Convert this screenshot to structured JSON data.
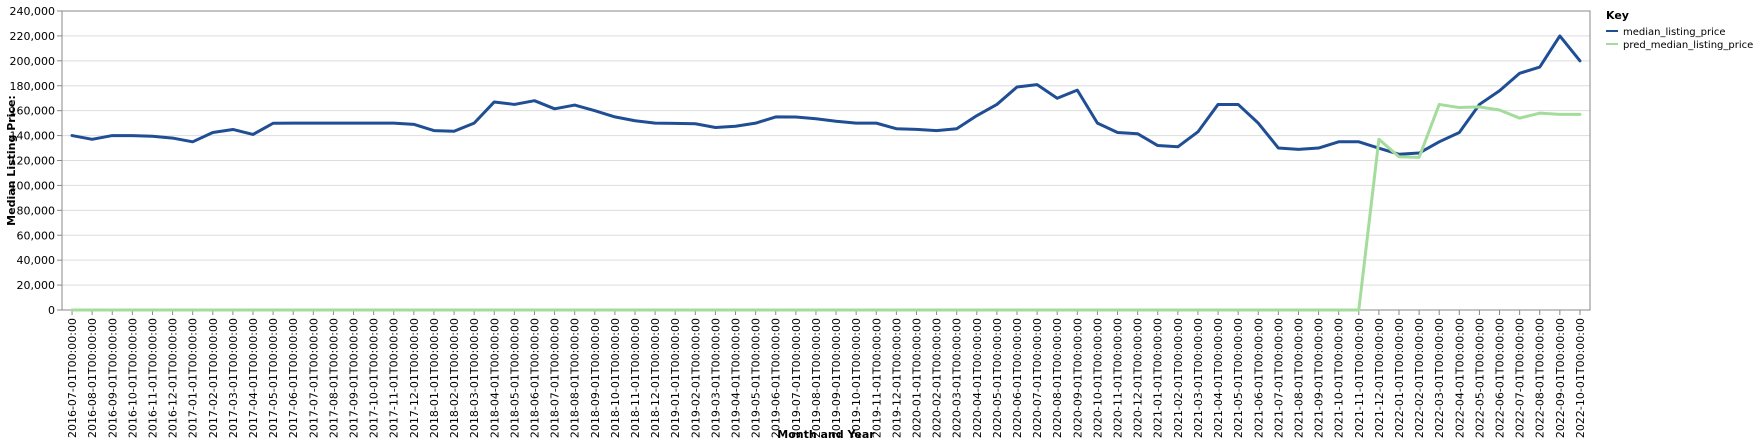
{
  "chart_data": {
    "type": "line",
    "xlabel": "Month and Year",
    "ylabel": "Median Listing Price:",
    "ylim": [
      0,
      240000
    ],
    "y_ticks": [
      "0",
      "20,000",
      "40,000",
      "60,000",
      "80,000",
      "100,000",
      "120,000",
      "140,000",
      "160,000",
      "180,000",
      "200,000",
      "220,000",
      "240,000"
    ],
    "grid": true,
    "legend": {
      "title": "Key",
      "position": "top-right"
    },
    "x": [
      "2016-07-01T00:00:00",
      "2016-08-01T00:00:00",
      "2016-09-01T00:00:00",
      "2016-10-01T00:00:00",
      "2016-11-01T00:00:00",
      "2016-12-01T00:00:00",
      "2017-01-01T00:00:00",
      "2017-02-01T00:00:00",
      "2017-03-01T00:00:00",
      "2017-04-01T00:00:00",
      "2017-05-01T00:00:00",
      "2017-06-01T00:00:00",
      "2017-07-01T00:00:00",
      "2017-08-01T00:00:00",
      "2017-09-01T00:00:00",
      "2017-10-01T00:00:00",
      "2017-11-01T00:00:00",
      "2017-12-01T00:00:00",
      "2018-01-01T00:00:00",
      "2018-02-01T00:00:00",
      "2018-03-01T00:00:00",
      "2018-04-01T00:00:00",
      "2018-05-01T00:00:00",
      "2018-06-01T00:00:00",
      "2018-07-01T00:00:00",
      "2018-08-01T00:00:00",
      "2018-09-01T00:00:00",
      "2018-10-01T00:00:00",
      "2018-11-01T00:00:00",
      "2018-12-01T00:00:00",
      "2019-01-01T00:00:00",
      "2019-02-01T00:00:00",
      "2019-03-01T00:00:00",
      "2019-04-01T00:00:00",
      "2019-05-01T00:00:00",
      "2019-06-01T00:00:00",
      "2019-07-01T00:00:00",
      "2019-08-01T00:00:00",
      "2019-09-01T00:00:00",
      "2019-10-01T00:00:00",
      "2019-11-01T00:00:00",
      "2019-12-01T00:00:00",
      "2020-01-01T00:00:00",
      "2020-02-01T00:00:00",
      "2020-03-01T00:00:00",
      "2020-04-01T00:00:00",
      "2020-05-01T00:00:00",
      "2020-06-01T00:00:00",
      "2020-07-01T00:00:00",
      "2020-08-01T00:00:00",
      "2020-09-01T00:00:00",
      "2020-10-01T00:00:00",
      "2020-11-01T00:00:00",
      "2020-12-01T00:00:00",
      "2021-01-01T00:00:00",
      "2021-02-01T00:00:00",
      "2021-03-01T00:00:00",
      "2021-04-01T00:00:00",
      "2021-05-01T00:00:00",
      "2021-06-01T00:00:00",
      "2021-07-01T00:00:00",
      "2021-08-01T00:00:00",
      "2021-09-01T00:00:00",
      "2021-10-01T00:00:00",
      "2021-11-01T00:00:00",
      "2021-12-01T00:00:00",
      "2022-01-01T00:00:00",
      "2022-02-01T00:00:00",
      "2022-03-01T00:00:00",
      "2022-04-01T00:00:00",
      "2022-05-01T00:00:00",
      "2022-06-01T00:00:00",
      "2022-07-01T00:00:00",
      "2022-08-01T00:00:00",
      "2022-09-01T00:00:00",
      "2022-10-01T00:00:00"
    ],
    "series": [
      {
        "name": "median_listing_price",
        "color": "#1f4e94",
        "values": [
          140000,
          137000,
          140000,
          140000,
          139500,
          138000,
          135000,
          142500,
          144900,
          140900,
          149900,
          150000,
          150000,
          150000,
          150000,
          150000,
          150000,
          149000,
          144000,
          143500,
          150000,
          167000,
          165000,
          168000,
          161500,
          164500,
          160000,
          155000,
          151900,
          150000,
          149800,
          149500,
          146500,
          147500,
          150000,
          155000,
          154900,
          153500,
          151500,
          150000,
          150000,
          145500,
          145000,
          144000,
          145500,
          156000,
          165000,
          179000,
          180900,
          170000,
          176500,
          150000,
          142500,
          141500,
          132000,
          131000,
          143000,
          165000,
          165000,
          150000,
          130000,
          128900,
          130000,
          135000,
          135000,
          129900,
          125000,
          126000,
          135000,
          142500,
          165000,
          176000,
          190000,
          195000,
          220000,
          200000
        ]
      },
      {
        "name": "pred_median_listing_price",
        "color": "#a3dc9b",
        "values": [
          0,
          0,
          0,
          0,
          0,
          0,
          0,
          0,
          0,
          0,
          0,
          0,
          0,
          0,
          0,
          0,
          0,
          0,
          0,
          0,
          0,
          0,
          0,
          0,
          0,
          0,
          0,
          0,
          0,
          0,
          0,
          0,
          0,
          0,
          0,
          0,
          0,
          0,
          0,
          0,
          0,
          0,
          0,
          0,
          0,
          0,
          0,
          0,
          0,
          0,
          0,
          0,
          0,
          0,
          0,
          0,
          0,
          0,
          0,
          0,
          0,
          0,
          0,
          0,
          0,
          137000,
          123000,
          122500,
          165000,
          162500,
          163000,
          160500,
          154000,
          158000,
          157000,
          157000
        ]
      }
    ]
  }
}
